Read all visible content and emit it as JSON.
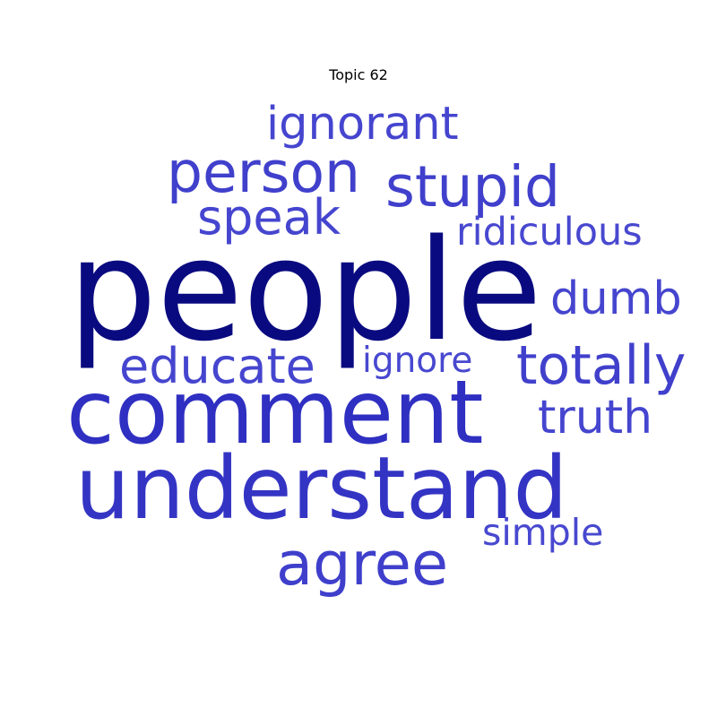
{
  "title": "Topic 62",
  "words": [
    {
      "text": "people",
      "weight": 1.0,
      "color": "#0a0a80"
    },
    {
      "text": "comment",
      "weight": 0.74,
      "color": "#2f2fc2"
    },
    {
      "text": "understand",
      "weight": 0.72,
      "color": "#3434c4"
    },
    {
      "text": "agree",
      "weight": 0.48,
      "color": "#3f3fcc"
    },
    {
      "text": "person",
      "weight": 0.45,
      "color": "#4040cc"
    },
    {
      "text": "stupid",
      "weight": 0.45,
      "color": "#4040cc"
    },
    {
      "text": "totally",
      "weight": 0.42,
      "color": "#4040cc"
    },
    {
      "text": "educate",
      "weight": 0.38,
      "color": "#4545cf"
    },
    {
      "text": "speak",
      "weight": 0.38,
      "color": "#4545cf"
    },
    {
      "text": "truth",
      "weight": 0.36,
      "color": "#4545cf"
    },
    {
      "text": "ignorant",
      "weight": 0.36,
      "color": "#4545cf"
    },
    {
      "text": "dumb",
      "weight": 0.36,
      "color": "#4545cf"
    },
    {
      "text": "ridiculous",
      "weight": 0.3,
      "color": "#4848d0"
    },
    {
      "text": "simple",
      "weight": 0.28,
      "color": "#4848d0"
    },
    {
      "text": "ignore",
      "weight": 0.27,
      "color": "#4848d0"
    }
  ]
}
